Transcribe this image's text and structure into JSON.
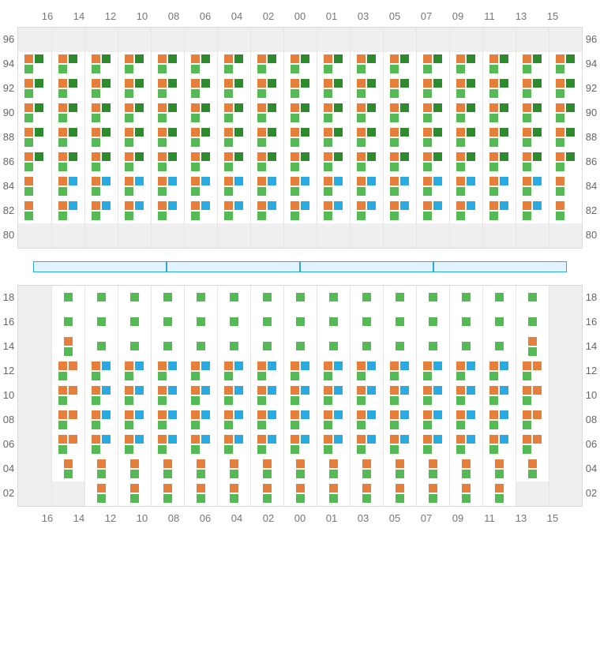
{
  "colors": {
    "orange": "#e67e3c",
    "darkgreen": "#2d8a2d",
    "green": "#55b955",
    "blue": "#29abe2",
    "grey_bg": "#efefef",
    "border": "#d9d9d9"
  },
  "columns": [
    "16",
    "14",
    "12",
    "10",
    "08",
    "06",
    "04",
    "02",
    "00",
    "01",
    "03",
    "05",
    "07",
    "09",
    "11",
    "13",
    "15"
  ],
  "top": {
    "label_rows": [
      "96",
      "94",
      "92",
      "90",
      "88",
      "86",
      "84",
      "82",
      "80"
    ],
    "rows": [
      {
        "cells": [
          "empty",
          "empty",
          "empty",
          "empty",
          "empty",
          "empty",
          "empty",
          "empty",
          "empty",
          "empty",
          "empty",
          "empty",
          "empty",
          "empty",
          "empty",
          "empty",
          "empty"
        ]
      },
      {
        "cells": [
          "ODG",
          "ODG",
          "ODG",
          "ODG",
          "ODG",
          "ODG",
          "ODG",
          "ODG",
          "ODG",
          "ODG",
          "ODG",
          "ODG",
          "ODG",
          "ODG",
          "ODG",
          "ODG",
          "ODG"
        ]
      },
      {
        "cells": [
          "ODG",
          "ODG",
          "ODG",
          "ODG",
          "ODG",
          "ODG",
          "ODG",
          "ODG",
          "ODG",
          "ODG",
          "ODG",
          "ODG",
          "ODG",
          "ODG",
          "ODG",
          "ODG",
          "ODG"
        ]
      },
      {
        "cells": [
          "ODG",
          "ODG",
          "ODG",
          "ODG",
          "ODG",
          "ODG",
          "ODG",
          "ODG",
          "ODG",
          "ODG",
          "ODG",
          "ODG",
          "ODG",
          "ODG",
          "ODG",
          "ODG",
          "ODG"
        ]
      },
      {
        "cells": [
          "ODG",
          "ODG",
          "ODG",
          "ODG",
          "ODG",
          "ODG",
          "ODG",
          "ODG",
          "ODG",
          "ODG",
          "ODG",
          "ODG",
          "ODG",
          "ODG",
          "ODG",
          "ODG",
          "ODG"
        ]
      },
      {
        "cells": [
          "ODG",
          "ODG",
          "ODG",
          "ODG",
          "ODG",
          "ODG",
          "ODG",
          "ODG",
          "ODG",
          "ODG",
          "ODG",
          "ODG",
          "ODG",
          "ODG",
          "ODG",
          "ODG",
          "ODG"
        ]
      },
      {
        "cells": [
          "OBGr",
          "OBG",
          "OBG",
          "OBG",
          "OBG",
          "OBG",
          "OBG",
          "OBG",
          "OBG",
          "OBG",
          "OBG",
          "OBG",
          "OBG",
          "OBG",
          "OBG",
          "OBG",
          "OBGr"
        ]
      },
      {
        "cells": [
          "OBGr",
          "OBG",
          "OBG",
          "OBG",
          "OBG",
          "OBG",
          "OBG",
          "OBG",
          "OBG",
          "OBG",
          "OBG",
          "OBG",
          "OBG",
          "OBG",
          "OBG",
          "OBG",
          "OBGr"
        ]
      },
      {
        "cells": [
          "empty",
          "empty",
          "empty",
          "empty",
          "empty",
          "empty",
          "empty",
          "empty",
          "empty",
          "empty",
          "empty",
          "empty",
          "empty",
          "empty",
          "empty",
          "empty",
          "empty"
        ]
      }
    ]
  },
  "bottom": {
    "label_rows": [
      "18",
      "16",
      "14",
      "12",
      "10",
      "08",
      "06",
      "04",
      "02"
    ],
    "rows": [
      {
        "cells": [
          "empty",
          "G1",
          "G1",
          "G1",
          "G1",
          "G1",
          "G1",
          "G1",
          "G1",
          "G1",
          "G1",
          "G1",
          "G1",
          "G1",
          "G1",
          "G1",
          "empty"
        ]
      },
      {
        "cells": [
          "empty",
          "G1",
          "G1",
          "G1",
          "G1",
          "G1",
          "G1",
          "G1",
          "G1",
          "G1",
          "G1",
          "G1",
          "G1",
          "G1",
          "G1",
          "G1",
          "empty"
        ]
      },
      {
        "cells": [
          "empty",
          "OGv",
          "G1",
          "G1",
          "G1",
          "G1",
          "G1",
          "G1",
          "G1",
          "G1",
          "G1",
          "G1",
          "G1",
          "G1",
          "G1",
          "OGv",
          "empty"
        ]
      },
      {
        "cells": [
          "empty",
          "OOG",
          "OBG",
          "OBG",
          "OBG",
          "OBG",
          "OBG",
          "OBG",
          "OBG",
          "OBG",
          "OBG",
          "OBG",
          "OBG",
          "OBG",
          "OBG",
          "OOG",
          "empty"
        ]
      },
      {
        "cells": [
          "empty",
          "OOG",
          "OBG",
          "OBG",
          "OBG",
          "OBG",
          "OBG",
          "OBG",
          "OBG",
          "OBG",
          "OBG",
          "OBG",
          "OBG",
          "OBG",
          "OBG",
          "OOG",
          "empty"
        ]
      },
      {
        "cells": [
          "empty",
          "OOG",
          "OBG",
          "OBG",
          "OBG",
          "OBG",
          "OBG",
          "OBG",
          "OBG",
          "OBG",
          "OBG",
          "OBG",
          "OBG",
          "OBG",
          "OBG",
          "OOG",
          "empty"
        ]
      },
      {
        "cells": [
          "empty",
          "OOG",
          "OBG",
          "OBG",
          "OBG",
          "OBG",
          "OBG",
          "OBG",
          "OBG",
          "OBG",
          "OBG",
          "OBG",
          "OBG",
          "OBG",
          "OBG",
          "OOG",
          "empty"
        ]
      },
      {
        "cells": [
          "empty",
          "OGv",
          "OGv",
          "OGv",
          "OGv",
          "OGv",
          "OGv",
          "OGv",
          "OGv",
          "OGv",
          "OGv",
          "OGv",
          "OGv",
          "OGv",
          "OGv",
          "OGv",
          "empty"
        ]
      },
      {
        "cells": [
          "empty",
          "empty",
          "OGv",
          "OGv",
          "OGv",
          "OGv",
          "OGv",
          "OGv",
          "OGv",
          "OGv",
          "OGv",
          "OGv",
          "OGv",
          "OGv",
          "OGv",
          "empty",
          "empty"
        ]
      }
    ]
  },
  "separator_segments": 4,
  "cell_patterns_legend": {
    "empty": "grey empty cell",
    "ODG": "orange top-left, darkgreen top-right, green bottom-left",
    "OBG": "orange top-left, blue top-right, green bottom-left",
    "OBGr": "orange top-left, blue top-right (right-edge row variant = orange top, green below, no blue)",
    "OOG": "orange top-left, orange top-right, green bottom-left",
    "G1": "single green square centered",
    "OGv": "orange on top, green below (vertical pair centered)"
  }
}
